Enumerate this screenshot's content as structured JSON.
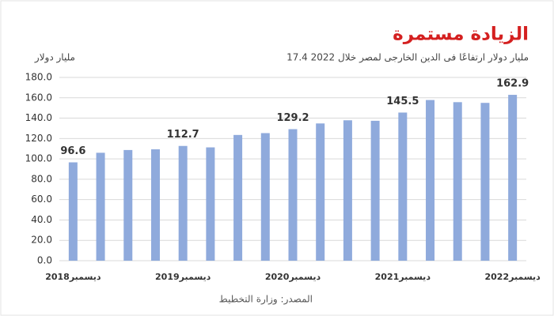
{
  "chart_data": {
    "type": "bar",
    "title": "الزيادة مستمرة",
    "subtitle": "17.4  مليار دولار ارتفاعًا فى الدين الخارجى لمصر خلال 2022",
    "y_label": "مليار دولار",
    "source": "المصدر: وزارة التخطيط",
    "categories": [
      "ديسمبر2018",
      null,
      null,
      null,
      "ديسمبر2019",
      null,
      null,
      null,
      "ديسمبر2020",
      null,
      null,
      null,
      "ديسمبر2021",
      null,
      null,
      null,
      "ديسمبر2022"
    ],
    "values": [
      96.6,
      106.0,
      108.7,
      109.4,
      112.7,
      111.3,
      123.5,
      125.3,
      129.2,
      134.8,
      137.9,
      137.4,
      145.5,
      157.8,
      155.7,
      155.0,
      162.9
    ],
    "color": "#8faadc",
    "ylim": [
      0,
      180
    ],
    "yticks": [
      {
        "value": 0,
        "label": "0.0"
      },
      {
        "value": 20,
        "label": "20.0"
      },
      {
        "value": 40,
        "label": "40.0"
      },
      {
        "value": 60,
        "label": "60.0"
      },
      {
        "value": 80,
        "label": "80.0"
      },
      {
        "value": 100,
        "label": "100.0"
      },
      {
        "value": 120,
        "label": "120.0"
      },
      {
        "value": 140,
        "label": "140.0"
      },
      {
        "value": 160,
        "label": "160.0"
      },
      {
        "value": 180,
        "label": "180.0"
      }
    ],
    "grid": true
  }
}
